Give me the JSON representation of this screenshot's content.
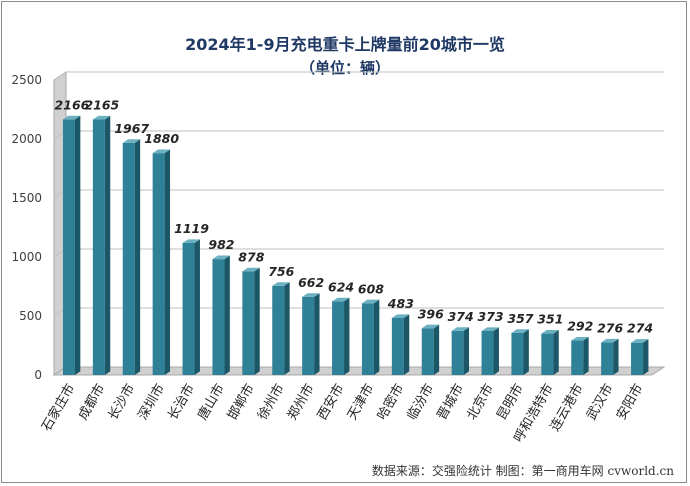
{
  "chart_data": {
    "type": "bar",
    "title": "2024年1-9月充电重卡上牌量前20城市一览",
    "subtitle": "（单位：辆）",
    "categories": [
      "石家庄市",
      "成都市",
      "长沙市",
      "深圳市",
      "长治市",
      "唐山市",
      "邯郸市",
      "徐州市",
      "郑州市",
      "西安市",
      "天津市",
      "哈密市",
      "临汾市",
      "晋城市",
      "北京市",
      "昆明市",
      "呼和浩特市",
      "连云港市",
      "武汉市",
      "安阳市"
    ],
    "values": [
      2166,
      2165,
      1967,
      1880,
      1119,
      982,
      878,
      756,
      662,
      624,
      608,
      483,
      396,
      374,
      373,
      357,
      351,
      292,
      276,
      274
    ],
    "ylim": [
      0,
      2500
    ],
    "yticks": [
      0,
      500,
      1000,
      1500,
      2000,
      2500
    ],
    "xlabel": "",
    "ylabel": "",
    "grid": true,
    "legend": "none",
    "source": "数据来源：交强险统计   制图：第一商用车网 cvworld.cn",
    "colors": {
      "bar_front": "#2e8196",
      "bar_side": "#1b5766",
      "bar_top": "#6bb1c2",
      "wall": "#d0d0d0",
      "wall_edge": "#a8a8a8",
      "grid": "#bfbfbf",
      "title": "#1f3864"
    }
  }
}
